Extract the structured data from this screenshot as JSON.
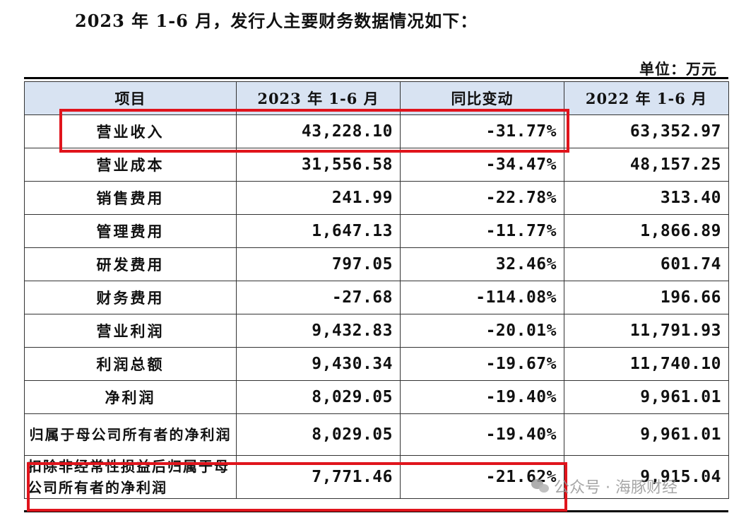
{
  "heading": "2023 年 1-6 月，发行人主要财务数据情况如下：",
  "unit": "单位：万元",
  "table": {
    "headers": [
      "项目",
      "2023 年 1-6 月",
      "同比变动",
      "2022 年 1-6 月"
    ],
    "rows": [
      {
        "item": "营业收入",
        "current": "43,228.10",
        "change": "-31.77%",
        "prior": "63,352.97"
      },
      {
        "item": "营业成本",
        "current": "31,556.58",
        "change": "-34.47%",
        "prior": "48,157.25"
      },
      {
        "item": "销售费用",
        "current": "241.99",
        "change": "-22.78%",
        "prior": "313.40"
      },
      {
        "item": "管理费用",
        "current": "1,647.13",
        "change": "-11.77%",
        "prior": "1,866.89"
      },
      {
        "item": "研发费用",
        "current": "797.05",
        "change": "32.46%",
        "prior": "601.74"
      },
      {
        "item": "财务费用",
        "current": "-27.68",
        "change": "-114.08%",
        "prior": "196.66"
      },
      {
        "item": "营业利润",
        "current": "9,432.83",
        "change": "-20.01%",
        "prior": "11,791.93"
      },
      {
        "item": "利润总额",
        "current": "9,430.34",
        "change": "-19.67%",
        "prior": "11,740.10"
      },
      {
        "item": "净利润",
        "current": "8,029.05",
        "change": "-19.40%",
        "prior": "9,961.01"
      },
      {
        "item": "归属于母公司所有者的净利润",
        "current": "8,029.05",
        "change": "-19.40%",
        "prior": "9,961.01"
      },
      {
        "item": "扣除非经常性损益后归属于母公司所有者的净利润",
        "current": "7,771.46",
        "change": "-21.62%",
        "prior": "9,915.04"
      }
    ]
  },
  "highlight_color": "#e0141c",
  "header_bg": "#d8e3f2",
  "watermark": {
    "text": "公众号 · 海豚财经",
    "icon": "wechat-icon"
  }
}
